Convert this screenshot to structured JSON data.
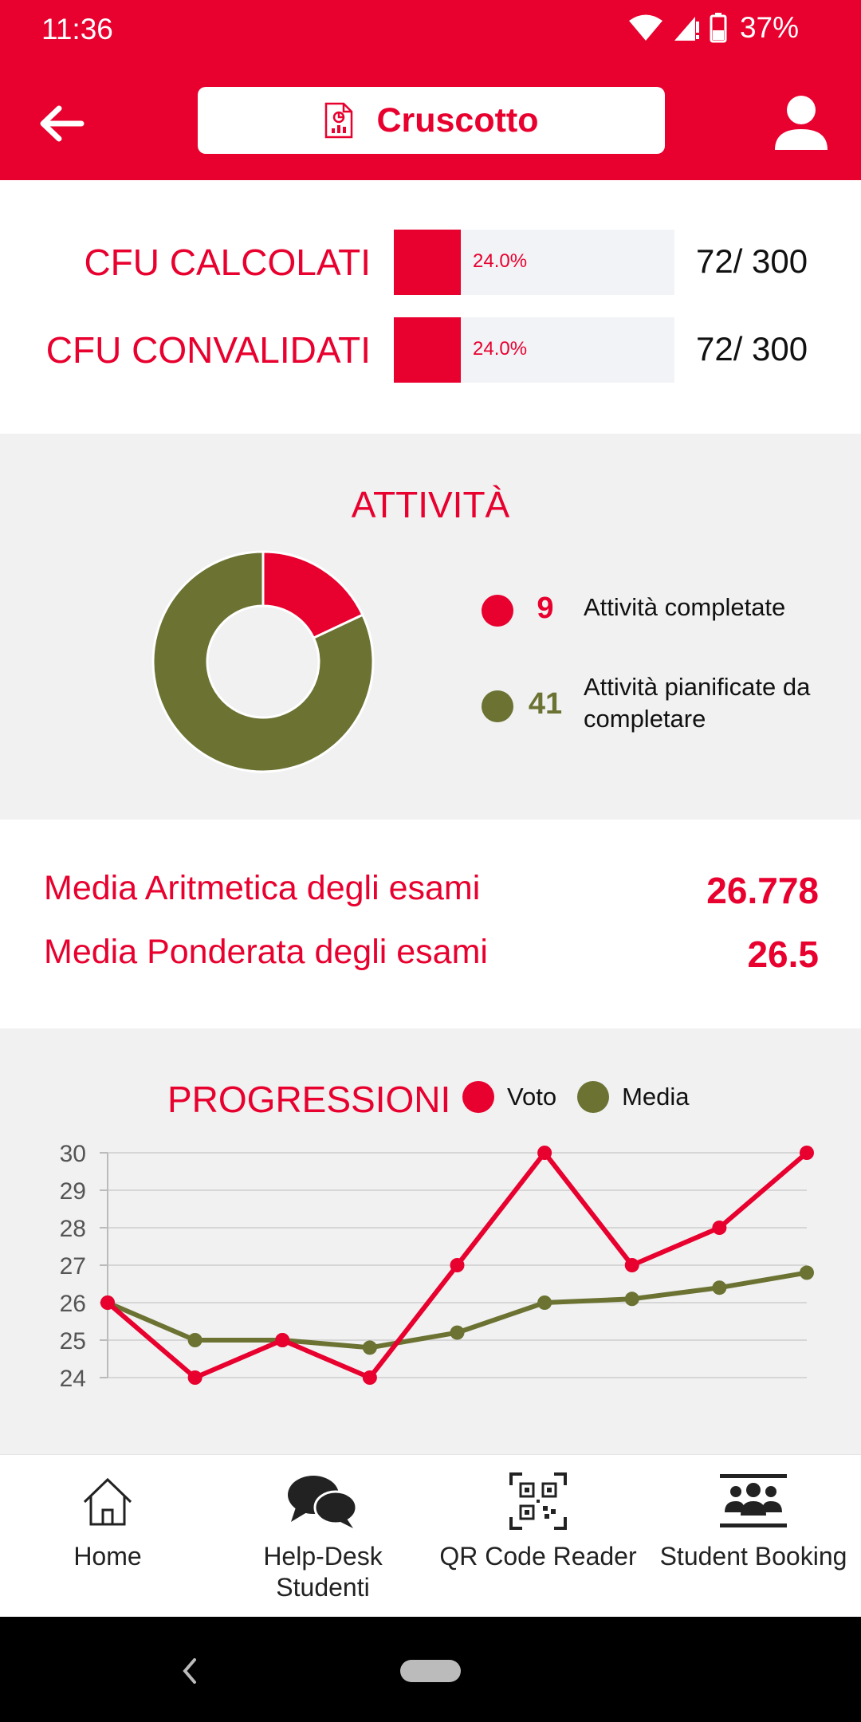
{
  "status_bar": {
    "time": "11:36",
    "battery": "37%"
  },
  "app_bar": {
    "title": "Cruscotto"
  },
  "cfu": [
    {
      "label": "CFU CALCOLATI",
      "percent": 24.0,
      "percent_text": "24.0%",
      "value_text": "72/ 300"
    },
    {
      "label": "CFU CONVALIDATI",
      "percent": 24.0,
      "percent_text": "24.0%",
      "value_text": "72/ 300"
    }
  ],
  "attivita": {
    "title": "ATTIVITÀ",
    "legend": [
      {
        "count": "9",
        "label": "Attività completate",
        "color": "#e8002e"
      },
      {
        "count": "41",
        "label": "Attività pianificate da completare",
        "color": "#6b7232"
      }
    ]
  },
  "medie": [
    {
      "label": "Media Aritmetica degli esami",
      "value": "26.778"
    },
    {
      "label": "Media Ponderata degli esami",
      "value": "26.5"
    }
  ],
  "progressioni": {
    "title": "PROGRESSIONI",
    "legend": [
      {
        "name": "Voto",
        "color": "#e8002e"
      },
      {
        "name": "Media",
        "color": "#6b7232"
      }
    ]
  },
  "chart_data": [
    {
      "type": "pie",
      "title": "ATTIVITÀ",
      "categories": [
        "Attività completate",
        "Attività pianificate da completare"
      ],
      "values": [
        9,
        41
      ],
      "colors": [
        "#e8002e",
        "#6b7232"
      ]
    },
    {
      "type": "line",
      "title": "PROGRESSIONI",
      "x": [
        1,
        2,
        3,
        4,
        5,
        6,
        7,
        8,
        9
      ],
      "y_ticks": [
        "30",
        "29",
        "28",
        "27",
        "26",
        "25",
        "24"
      ],
      "ylim": [
        24,
        30
      ],
      "grid": true,
      "legend": "top",
      "series": [
        {
          "name": "Voto",
          "color": "#e8002e",
          "values": [
            26,
            24,
            25,
            24,
            27,
            30,
            27,
            28,
            30
          ]
        },
        {
          "name": "Media",
          "color": "#6b7232",
          "values": [
            26,
            25,
            25,
            24.8,
            25.2,
            26,
            26.1,
            26.4,
            26.8
          ]
        }
      ]
    }
  ],
  "bottom_nav": [
    {
      "label": "Home",
      "icon": "home-icon"
    },
    {
      "label": "Help-Desk Studenti",
      "icon": "chat-bubbles-icon"
    },
    {
      "label": "QR Code Reader",
      "icon": "qr-code-icon"
    },
    {
      "label": "Student Booking",
      "icon": "group-icon"
    }
  ]
}
